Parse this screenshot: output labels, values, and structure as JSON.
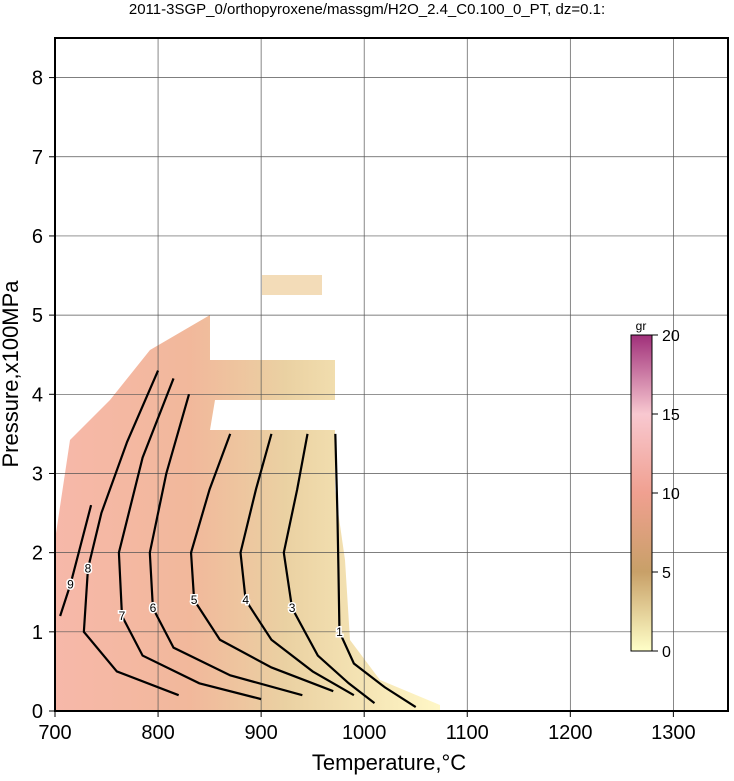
{
  "chart_data": {
    "type": "contour",
    "title": "2011-3SGP_0/orthopyroxene/massgm/H2O_2.4_C0.100_0_PT, dz=0.1:",
    "xlabel": "Temperature,°C",
    "ylabel": "Pressure,x100MPa",
    "xlim": [
      700,
      1353
    ],
    "ylim": [
      0,
      8.5
    ],
    "xticks": [
      700,
      800,
      900,
      1000,
      1100,
      1200,
      1300
    ],
    "yticks": [
      0,
      1,
      2,
      3,
      4,
      5,
      6,
      7,
      8
    ],
    "grid": true,
    "colorbar": {
      "label": "gr",
      "clim": [
        0,
        20
      ],
      "ticks": [
        0,
        5,
        10,
        15,
        20
      ],
      "stops": [
        {
          "value": 0,
          "color": "#ffffc8"
        },
        {
          "value": 5,
          "color": "#c8a068"
        },
        {
          "value": 10,
          "color": "#f0a090"
        },
        {
          "value": 15,
          "color": "#f8c8d0"
        },
        {
          "value": 20,
          "color": "#a0307a"
        }
      ]
    },
    "series": [
      {
        "level": 1,
        "x": [
          972,
          974,
          975,
          976,
          990,
          1020,
          1050
        ],
        "y": [
          3.5,
          2.5,
          1.8,
          1.0,
          0.6,
          0.3,
          0.05
        ]
      },
      {
        "level": 3,
        "x": [
          945,
          935,
          922,
          930,
          955,
          985,
          1010
        ],
        "y": [
          3.5,
          2.8,
          2.0,
          1.3,
          0.7,
          0.35,
          0.1
        ]
      },
      {
        "level": 4,
        "x": [
          910,
          895,
          880,
          885,
          910,
          950,
          990
        ],
        "y": [
          3.5,
          2.8,
          2.0,
          1.4,
          0.9,
          0.5,
          0.2
        ]
      },
      {
        "level": 5,
        "x": [
          870,
          850,
          832,
          835,
          860,
          910,
          970
        ],
        "y": [
          3.5,
          2.8,
          2.0,
          1.4,
          0.9,
          0.55,
          0.25
        ]
      },
      {
        "level": 6,
        "x": [
          830,
          808,
          792,
          795,
          815,
          870,
          940
        ],
        "y": [
          4.0,
          3.0,
          2.0,
          1.3,
          0.8,
          0.45,
          0.2
        ]
      },
      {
        "level": 7,
        "x": [
          815,
          785,
          762,
          765,
          785,
          840,
          900
        ],
        "y": [
          4.2,
          3.2,
          2.0,
          1.2,
          0.7,
          0.35,
          0.15
        ]
      },
      {
        "level": 8,
        "x": [
          800,
          770,
          745,
          732,
          728,
          760,
          820
        ],
        "y": [
          4.3,
          3.4,
          2.5,
          1.8,
          1.0,
          0.5,
          0.2
        ]
      },
      {
        "level": 9,
        "x": [
          735,
          725,
          715,
          705
        ],
        "y": [
          2.6,
          2.1,
          1.6,
          1.2
        ]
      }
    ]
  }
}
